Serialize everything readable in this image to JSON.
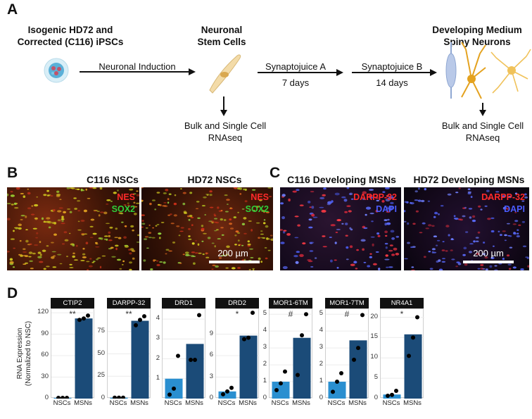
{
  "panels": {
    "a": {
      "letter": "A",
      "stage1": {
        "title_line1": "Isogenic HD72 and",
        "title_line2": "Corrected (C116) iPSCs"
      },
      "stage2": {
        "title_line1": "Neuronal",
        "title_line2": "Stem Cells"
      },
      "stage3": {
        "title_line1": "Developing Medium",
        "title_line2": "Spiny Neurons"
      },
      "step1": "Neuronal Induction",
      "step2": {
        "name": "Synaptojuice A",
        "duration": "7 days"
      },
      "step3": {
        "name": "Synaptojuice B",
        "duration": "14 days"
      },
      "seq1": {
        "line1": "Bulk and Single Cell",
        "line2": "RNAseq"
      },
      "seq2": {
        "line1": "Bulk and Single Cell",
        "line2": "RNAseq"
      }
    },
    "b": {
      "letter": "B",
      "left_title": "C116 NSCs",
      "right_title": "HD72 NSCs",
      "stain1": "NES",
      "stain2": "SOX2",
      "scale": "200 µm",
      "colors": {
        "stain1": "#ff2a2a",
        "stain2": "#2fcf3a"
      }
    },
    "c": {
      "letter": "C",
      "left_title": "C116 Developing MSNs",
      "right_title": "HD72 Developing MSNs",
      "stain1": "DARPP-32",
      "stain2": "DAPI",
      "scale": "200 µm",
      "colors": {
        "stain1": "#ff2a2a",
        "stain2": "#4b5cff"
      }
    },
    "d": {
      "letter": "D",
      "ylabel_line1": "RNA Expression",
      "ylabel_line2": "(Normalized to NSC)"
    }
  },
  "chart_data": {
    "type": "bar",
    "categories": [
      "NSCs",
      "MSNs"
    ],
    "colors": {
      "NSCs": "#2a8fd0",
      "MSNs": "#1b4b78"
    },
    "ylabel": "RNA Expression (Normalized to NSC)",
    "facets": [
      {
        "name": "CTIP2",
        "sig": "**",
        "ylim": [
          0,
          125
        ],
        "yticks": [
          0,
          30,
          60,
          90,
          120
        ],
        "values": [
          1,
          112
        ],
        "points": [
          [
            1,
            1,
            1
          ],
          [
            110,
            112,
            116
          ]
        ]
      },
      {
        "name": "DARPP-32",
        "sig": "**",
        "ylim": [
          0,
          100
        ],
        "yticks": [
          0,
          25,
          50,
          75
        ],
        "values": [
          1,
          87
        ],
        "points": [
          [
            1,
            1,
            1
          ],
          [
            82,
            88,
            92
          ]
        ]
      },
      {
        "name": "DRD1",
        "sig": "",
        "ylim": [
          0,
          4.5
        ],
        "yticks": [
          1,
          2,
          3,
          4
        ],
        "values": [
          1.0,
          2.75
        ],
        "points": [
          [
            0.2,
            0.5,
            2.15
          ],
          [
            1.95,
            1.95,
            4.2
          ]
        ]
      },
      {
        "name": "DRD2",
        "sig": "*",
        "ylim": [
          0,
          12.5
        ],
        "yticks": [
          0,
          3,
          6,
          9
        ],
        "values": [
          1.0,
          8.8
        ],
        "points": [
          [
            0.6,
            1.0,
            1.5
          ],
          [
            8.3,
            8.5,
            12.0
          ]
        ]
      },
      {
        "name": "MOR1-6TM",
        "sig": "#",
        "ylim": [
          0,
          5.3
        ],
        "yticks": [
          0,
          1,
          2,
          3,
          4,
          5
        ],
        "values": [
          1.0,
          3.6
        ],
        "points": [
          [
            0.5,
            0.9,
            1.6
          ],
          [
            1.4,
            3.75,
            5.0
          ]
        ]
      },
      {
        "name": "MOR1-7TM",
        "sig": "#",
        "ylim": [
          0,
          5.3
        ],
        "yticks": [
          0,
          1,
          2,
          3,
          4,
          5
        ],
        "values": [
          1.0,
          3.45
        ],
        "points": [
          [
            0.4,
            1.0,
            1.5
          ],
          [
            2.3,
            3.0,
            4.95
          ]
        ]
      },
      {
        "name": "NR4A1",
        "sig": "*",
        "ylim": [
          0,
          22
        ],
        "yticks": [
          0,
          5,
          10,
          15,
          20
        ],
        "values": [
          1.0,
          15.8
        ],
        "points": [
          [
            0.7,
            0.9,
            1.9
          ],
          [
            10.5,
            15.0,
            20.0
          ]
        ]
      }
    ]
  }
}
